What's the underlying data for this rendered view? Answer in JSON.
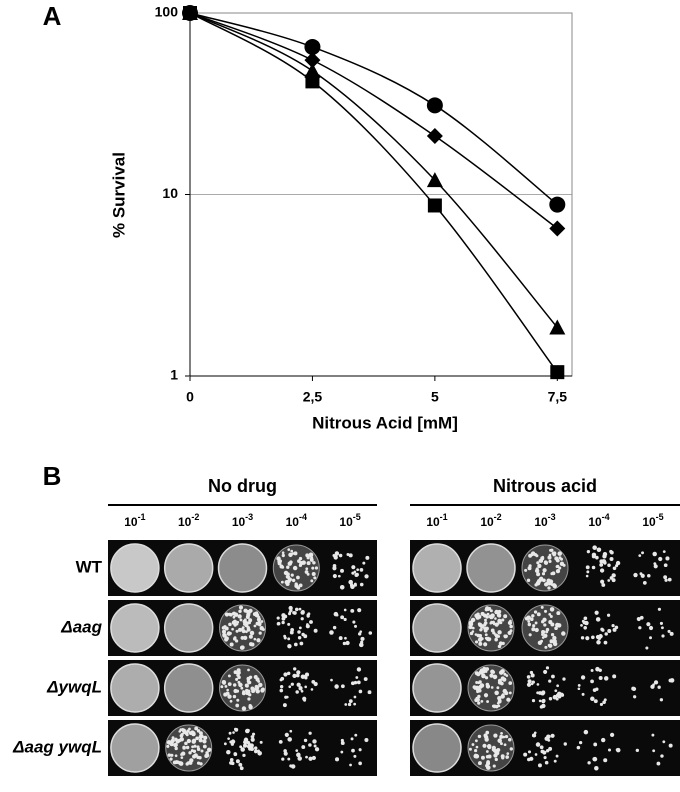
{
  "panel_a_label": "A",
  "panel_b_label": "B",
  "chart_data": {
    "type": "line",
    "y_label": "% Survival",
    "x_label": "Nitrous Acid [mM]",
    "x": [
      0,
      2.5,
      5,
      7.5
    ],
    "xlim": [
      0,
      7.8
    ],
    "xticks": [
      0,
      {
        "value": 2.5,
        "label": "2,5"
      },
      5,
      {
        "value": 7.5,
        "label": "7,5"
      }
    ],
    "ylim": [
      1,
      100
    ],
    "yticks": [
      1,
      10,
      100
    ],
    "log_y": true,
    "grid": true,
    "series": [
      {
        "marker": "circle",
        "color": "#000000",
        "values": [
          100,
          65,
          31,
          8.8
        ]
      },
      {
        "marker": "diamond",
        "color": "#000000",
        "values": [
          100,
          55,
          21,
          6.5
        ]
      },
      {
        "marker": "triangle",
        "color": "#000000",
        "values": [
          100,
          48,
          12,
          1.85
        ]
      },
      {
        "marker": "square",
        "color": "#000000",
        "values": [
          100,
          42,
          8.7,
          1.05
        ]
      }
    ]
  },
  "plates": {
    "groups": [
      "No drug",
      "Nitrous acid"
    ],
    "dilutions": [
      {
        "base": "10",
        "exponent": "-1"
      },
      {
        "base": "10",
        "exponent": "-2"
      },
      {
        "base": "10",
        "exponent": "-3"
      },
      {
        "base": "10",
        "exponent": "-4"
      },
      {
        "base": "10",
        "exponent": "-5"
      }
    ],
    "strains": [
      "WT",
      "Δaag",
      "ΔywqL",
      "Δaag ywqL"
    ]
  }
}
